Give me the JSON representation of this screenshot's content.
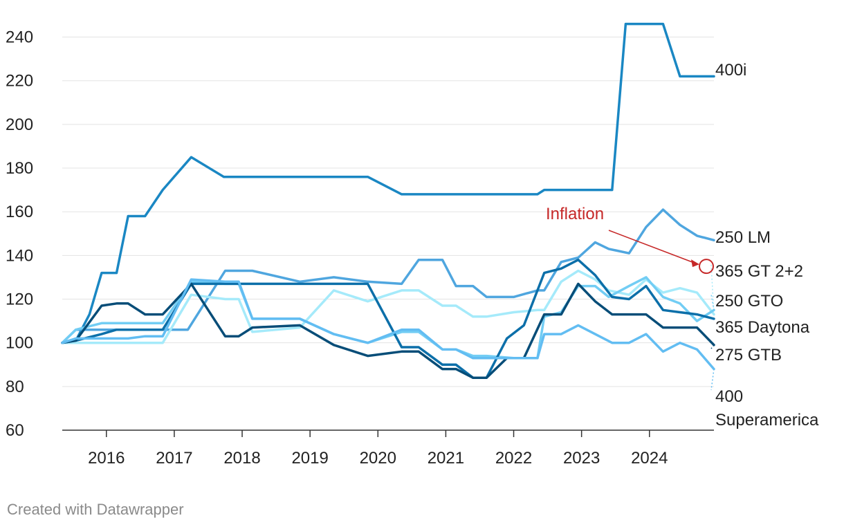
{
  "chart_data": {
    "type": "line",
    "title": "",
    "xlabel": "",
    "ylabel": "",
    "ylim": [
      60,
      250
    ],
    "xlim": [
      2015.35,
      2024.95
    ],
    "y_ticks": [
      "240",
      "220",
      "200",
      "180",
      "160",
      "140",
      "120",
      "100",
      "80",
      "60"
    ],
    "x_ticks": [
      "2016",
      "2017",
      "2018",
      "2019",
      "2020",
      "2021",
      "2022",
      "2023",
      "2024"
    ],
    "grid": true,
    "legend": "direct labels at right end of each line",
    "series": [
      {
        "name": "400i",
        "color": "#1a87c3",
        "points": [
          [
            2015.35,
            100
          ],
          [
            2015.55,
            101
          ],
          [
            2015.75,
            113
          ],
          [
            2015.93,
            132
          ],
          [
            2016.15,
            132
          ],
          [
            2016.32,
            158
          ],
          [
            2016.57,
            158
          ],
          [
            2016.83,
            170
          ],
          [
            2017.25,
            185
          ],
          [
            2017.73,
            176
          ],
          [
            2018.2,
            176
          ],
          [
            2018.7,
            176
          ],
          [
            2019.3,
            176
          ],
          [
            2019.85,
            176
          ],
          [
            2020.35,
            168
          ],
          [
            2020.85,
            168
          ],
          [
            2021.35,
            168
          ],
          [
            2021.85,
            168
          ],
          [
            2022.35,
            168
          ],
          [
            2022.45,
            170
          ],
          [
            2022.85,
            170
          ],
          [
            2023.05,
            170
          ],
          [
            2023.45,
            170
          ],
          [
            2023.65,
            246
          ],
          [
            2023.95,
            246
          ],
          [
            2024.2,
            246
          ],
          [
            2024.45,
            222
          ],
          [
            2024.95,
            222
          ]
        ]
      },
      {
        "name": "250 LM",
        "color": "#4fa6df",
        "points": [
          [
            2015.35,
            100
          ],
          [
            2015.55,
            106
          ],
          [
            2016.1,
            106
          ],
          [
            2016.5,
            106
          ],
          [
            2016.83,
            106
          ],
          [
            2017.2,
            106
          ],
          [
            2017.75,
            133
          ],
          [
            2017.95,
            133
          ],
          [
            2018.15,
            133
          ],
          [
            2018.85,
            128
          ],
          [
            2019.35,
            130
          ],
          [
            2019.85,
            128
          ],
          [
            2020.35,
            127
          ],
          [
            2020.6,
            138
          ],
          [
            2020.95,
            138
          ],
          [
            2021.15,
            126
          ],
          [
            2021.4,
            126
          ],
          [
            2021.6,
            121
          ],
          [
            2022.0,
            121
          ],
          [
            2022.35,
            124
          ],
          [
            2022.45,
            124
          ],
          [
            2022.7,
            137
          ],
          [
            2022.95,
            139
          ],
          [
            2023.2,
            146
          ],
          [
            2023.4,
            143
          ],
          [
            2023.7,
            141
          ],
          [
            2023.95,
            153
          ],
          [
            2024.2,
            161
          ],
          [
            2024.45,
            154
          ],
          [
            2024.7,
            149
          ],
          [
            2024.95,
            147
          ]
        ]
      },
      {
        "name": "365 GT 2+2",
        "color": "#a5eafa",
        "points": [
          [
            2015.35,
            100
          ],
          [
            2015.55,
            100
          ],
          [
            2016.1,
            100
          ],
          [
            2016.5,
            100
          ],
          [
            2016.83,
            100
          ],
          [
            2017.25,
            122
          ],
          [
            2017.75,
            120
          ],
          [
            2017.95,
            120
          ],
          [
            2018.15,
            105
          ],
          [
            2018.85,
            107
          ],
          [
            2019.35,
            124
          ],
          [
            2019.85,
            119
          ],
          [
            2020.35,
            124
          ],
          [
            2020.6,
            124
          ],
          [
            2020.95,
            117
          ],
          [
            2021.15,
            117
          ],
          [
            2021.4,
            112
          ],
          [
            2021.6,
            112
          ],
          [
            2022.0,
            114
          ],
          [
            2022.35,
            115
          ],
          [
            2022.45,
            115
          ],
          [
            2022.7,
            128
          ],
          [
            2022.95,
            133
          ],
          [
            2023.2,
            129
          ],
          [
            2023.4,
            124
          ],
          [
            2023.7,
            122
          ],
          [
            2023.95,
            129
          ],
          [
            2024.2,
            123
          ],
          [
            2024.45,
            125
          ],
          [
            2024.7,
            123
          ],
          [
            2024.95,
            113
          ]
        ]
      },
      {
        "name": "250 GTO",
        "color": "#72cdf4",
        "points": [
          [
            2015.35,
            100
          ],
          [
            2015.55,
            106
          ],
          [
            2015.93,
            109
          ],
          [
            2016.5,
            109
          ],
          [
            2016.83,
            109
          ],
          [
            2017.25,
            128
          ],
          [
            2017.75,
            127
          ],
          [
            2017.95,
            127
          ],
          [
            2018.15,
            111
          ],
          [
            2018.85,
            111
          ],
          [
            2019.35,
            104
          ],
          [
            2019.85,
            100
          ],
          [
            2020.35,
            105
          ],
          [
            2020.6,
            105
          ],
          [
            2020.95,
            97
          ],
          [
            2021.15,
            97
          ],
          [
            2021.4,
            94
          ],
          [
            2021.6,
            94
          ],
          [
            2022.0,
            93
          ],
          [
            2022.35,
            93
          ],
          [
            2022.45,
            112
          ],
          [
            2022.7,
            114
          ],
          [
            2022.95,
            126
          ],
          [
            2023.2,
            126
          ],
          [
            2023.4,
            121
          ],
          [
            2023.7,
            126
          ],
          [
            2023.95,
            130
          ],
          [
            2024.2,
            121
          ],
          [
            2024.45,
            118
          ],
          [
            2024.7,
            110
          ],
          [
            2024.95,
            115
          ]
        ]
      },
      {
        "name": "365 Daytona",
        "color": "#0c6fa9",
        "points": [
          [
            2015.35,
            100
          ],
          [
            2015.55,
            101
          ],
          [
            2015.93,
            104
          ],
          [
            2016.15,
            106
          ],
          [
            2016.32,
            106
          ],
          [
            2016.57,
            106
          ],
          [
            2016.83,
            106
          ],
          [
            2017.25,
            127
          ],
          [
            2017.75,
            127
          ],
          [
            2018.15,
            127
          ],
          [
            2018.85,
            127
          ],
          [
            2019.35,
            127
          ],
          [
            2019.85,
            127
          ],
          [
            2020.35,
            98
          ],
          [
            2020.6,
            98
          ],
          [
            2020.95,
            90
          ],
          [
            2021.15,
            90
          ],
          [
            2021.4,
            84
          ],
          [
            2021.6,
            84
          ],
          [
            2021.9,
            102
          ],
          [
            2022.15,
            108
          ],
          [
            2022.45,
            132
          ],
          [
            2022.7,
            134
          ],
          [
            2022.95,
            138
          ],
          [
            2023.2,
            131
          ],
          [
            2023.45,
            121
          ],
          [
            2023.7,
            120
          ],
          [
            2023.95,
            126
          ],
          [
            2024.2,
            115
          ],
          [
            2024.45,
            114
          ],
          [
            2024.7,
            113
          ],
          [
            2024.95,
            111
          ]
        ]
      },
      {
        "name": "275 GTB",
        "color": "#074d78",
        "points": [
          [
            2015.35,
            100
          ],
          [
            2015.55,
            101
          ],
          [
            2015.93,
            117
          ],
          [
            2016.15,
            118
          ],
          [
            2016.32,
            118
          ],
          [
            2016.57,
            113
          ],
          [
            2016.83,
            113
          ],
          [
            2017.25,
            127
          ],
          [
            2017.75,
            103
          ],
          [
            2017.95,
            103
          ],
          [
            2018.15,
            107
          ],
          [
            2018.85,
            108
          ],
          [
            2019.35,
            99
          ],
          [
            2019.85,
            94
          ],
          [
            2020.35,
            96
          ],
          [
            2020.6,
            96
          ],
          [
            2020.95,
            88
          ],
          [
            2021.15,
            88
          ],
          [
            2021.4,
            84
          ],
          [
            2021.6,
            84
          ],
          [
            2021.9,
            93
          ],
          [
            2022.15,
            93
          ],
          [
            2022.45,
            113
          ],
          [
            2022.7,
            113
          ],
          [
            2022.95,
            127
          ],
          [
            2023.2,
            119
          ],
          [
            2023.45,
            113
          ],
          [
            2023.7,
            113
          ],
          [
            2023.95,
            113
          ],
          [
            2024.2,
            107
          ],
          [
            2024.45,
            107
          ],
          [
            2024.7,
            107
          ],
          [
            2024.95,
            99
          ]
        ]
      },
      {
        "name": "400 Superamerica",
        "color": "#62bdf2",
        "points": [
          [
            2015.35,
            100
          ],
          [
            2015.55,
            102
          ],
          [
            2015.93,
            102
          ],
          [
            2016.15,
            102
          ],
          [
            2016.32,
            102
          ],
          [
            2016.57,
            103
          ],
          [
            2016.83,
            103
          ],
          [
            2017.25,
            129
          ],
          [
            2017.75,
            128
          ],
          [
            2017.95,
            128
          ],
          [
            2018.15,
            111
          ],
          [
            2018.85,
            111
          ],
          [
            2019.35,
            104
          ],
          [
            2019.85,
            100
          ],
          [
            2020.35,
            106
          ],
          [
            2020.6,
            106
          ],
          [
            2020.95,
            97
          ],
          [
            2021.15,
            97
          ],
          [
            2021.4,
            93
          ],
          [
            2021.6,
            93
          ],
          [
            2022.0,
            93
          ],
          [
            2022.35,
            93
          ],
          [
            2022.45,
            104
          ],
          [
            2022.7,
            104
          ],
          [
            2022.95,
            108
          ],
          [
            2023.2,
            104
          ],
          [
            2023.45,
            100
          ],
          [
            2023.7,
            100
          ],
          [
            2023.95,
            104
          ],
          [
            2024.2,
            96
          ],
          [
            2024.45,
            100
          ],
          [
            2024.7,
            97
          ],
          [
            2024.95,
            88
          ]
        ]
      }
    ],
    "annotation": {
      "text": "Inflation",
      "color": "#c62828",
      "target": [
        2024.95,
        135
      ]
    }
  },
  "footer": {
    "credit": "Created with Datawrapper"
  }
}
